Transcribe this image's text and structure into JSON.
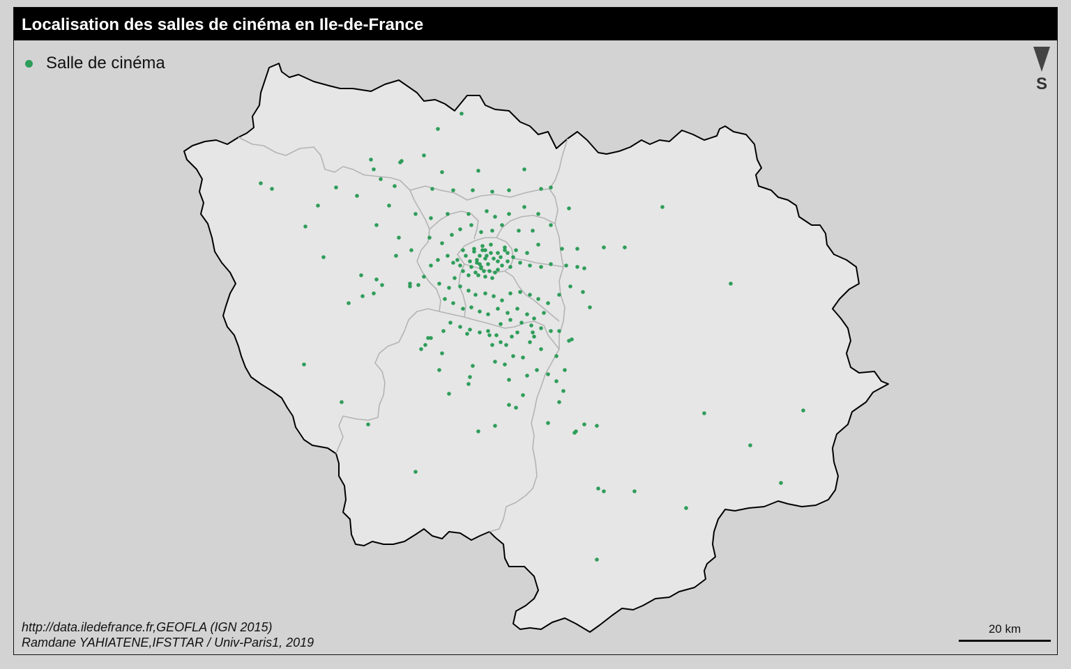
{
  "title": "Localisation des salles de cinéma en Ile-de-France",
  "legend": {
    "label": "Salle de cinéma",
    "color": "#2e9d5a"
  },
  "north_arrow": {
    "label": "S",
    "icon": "north-arrow-icon"
  },
  "source": {
    "line1": "http://data.iledefrance.fr,GEOFLA (IGN 2015)",
    "line2": "Ramdane YAHIATENE,IFSTTAR / Univ-Paris1, 2019"
  },
  "scale": {
    "label": "20 km"
  },
  "colors": {
    "background": "#d3d3d3",
    "region_fill": "#e6e6e6",
    "region_outline": "#000000",
    "department_outline": "#b4b4b4",
    "point": "#2e9d5a"
  },
  "map_data": {
    "type": "point-map",
    "features": "cinema locations",
    "region": "Ile-de-France"
  }
}
